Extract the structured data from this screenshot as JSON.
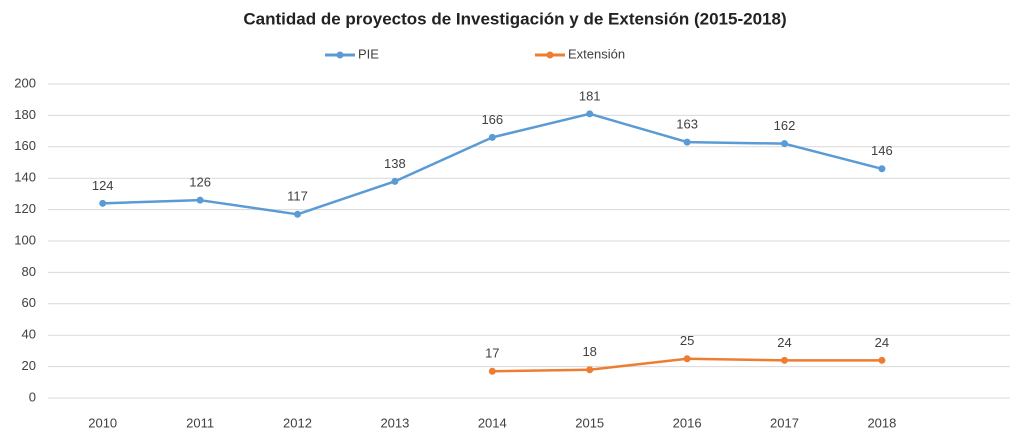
{
  "chart_data": {
    "type": "line",
    "title": "Cantidad de proyectos de Investigación y de Extensión (2015-2018)",
    "categories": [
      "2010",
      "2011",
      "2012",
      "2013",
      "2014",
      "2015",
      "2016",
      "2017",
      "2018"
    ],
    "series": [
      {
        "name": "PIE",
        "color": "#5b9bd5",
        "values": [
          124,
          126,
          117,
          138,
          166,
          181,
          163,
          162,
          146
        ]
      },
      {
        "name": "Extensión",
        "color": "#ed7d31",
        "values": [
          null,
          null,
          null,
          null,
          17,
          18,
          25,
          24,
          24
        ]
      }
    ],
    "ylim": [
      0,
      200
    ],
    "yticks": [
      0,
      20,
      40,
      60,
      80,
      100,
      120,
      140,
      160,
      180,
      200
    ],
    "grid": true,
    "legend": "top"
  }
}
